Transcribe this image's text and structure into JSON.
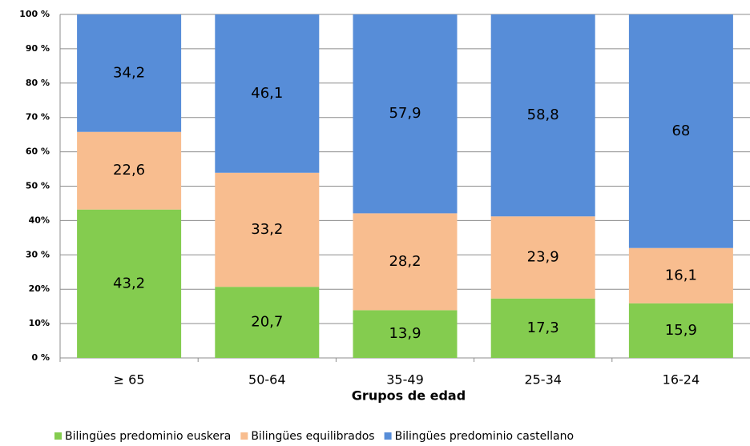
{
  "chart_data": {
    "type": "stacked_bar",
    "x_label": "Grupos de edad",
    "categories": [
      "≥ 65",
      "50-64",
      "35-49",
      "25-34",
      "16-24"
    ],
    "series": [
      {
        "name": "Bilingües predominio euskera",
        "color": "#84cc4f",
        "values": [
          43.2,
          20.7,
          13.9,
          17.3,
          15.9
        ],
        "value_labels": [
          "43,2",
          "20,7",
          "13,9",
          "17,3",
          "15,9"
        ]
      },
      {
        "name": "Bilingües equilibrados",
        "color": "#f8bd8f",
        "values": [
          22.6,
          33.2,
          28.2,
          23.9,
          16.1
        ],
        "value_labels": [
          "22,6",
          "33,2",
          "28,2",
          "23,9",
          "16,1"
        ]
      },
      {
        "name": "Bilingües predominio castellano",
        "color": "#578dd8",
        "values": [
          34.2,
          46.1,
          57.9,
          58.8,
          68
        ],
        "value_labels": [
          "34,2",
          "46,1",
          "57,9",
          "58,8",
          "68"
        ]
      }
    ],
    "ylim": [
      0,
      100
    ],
    "yticks": [
      {
        "value": 0,
        "label": "0 %"
      },
      {
        "value": 10,
        "label": "10%"
      },
      {
        "value": 20,
        "label": "20%"
      },
      {
        "value": 30,
        "label": "30 %"
      },
      {
        "value": 40,
        "label": "40%"
      },
      {
        "value": 50,
        "label": "50 %"
      },
      {
        "value": 60,
        "label": "60 %"
      },
      {
        "value": 70,
        "label": "70 %"
      },
      {
        "value": 80,
        "label": "80 %"
      },
      {
        "value": 90,
        "label": "90 %"
      },
      {
        "value": 100,
        "label": "100 %"
      }
    ],
    "grid": true,
    "legend": "bottom"
  }
}
